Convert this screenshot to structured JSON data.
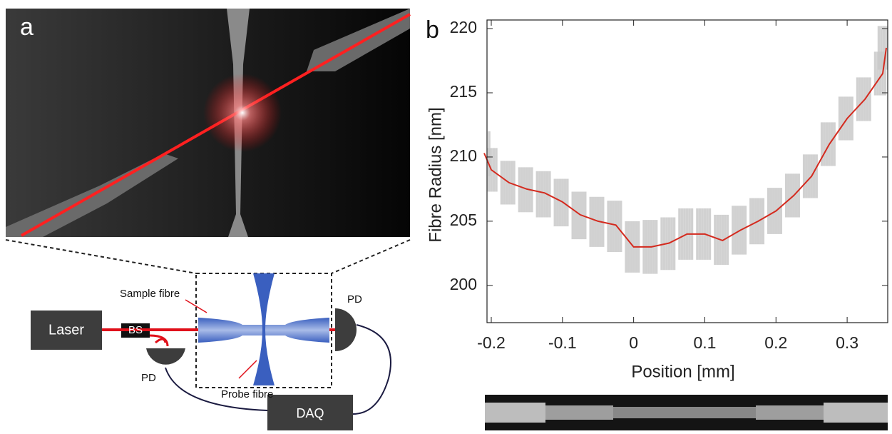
{
  "chart_data": {
    "type": "line",
    "xlabel": "Position [mm]",
    "ylabel": "Fibre Radius [nm]",
    "x": [
      -0.21,
      -0.2,
      -0.175,
      -0.15,
      -0.125,
      -0.1,
      -0.075,
      -0.05,
      -0.025,
      0.0,
      0.025,
      0.05,
      0.075,
      0.1,
      0.125,
      0.15,
      0.175,
      0.2,
      0.225,
      0.25,
      0.275,
      0.3,
      0.325,
      0.35,
      0.355
    ],
    "series": [
      {
        "color": "#d42a1e",
        "values": [
          210.3,
          209.0,
          208.0,
          207.5,
          207.2,
          206.5,
          205.5,
          205.0,
          204.7,
          203.0,
          203.0,
          203.3,
          204.0,
          204.0,
          203.5,
          204.3,
          205.0,
          205.8,
          207.0,
          208.5,
          211.0,
          213.0,
          214.5,
          216.5,
          218.5
        ]
      }
    ],
    "band": {
      "color": "#c9c9c9",
      "lower": [
        208.5,
        207.3,
        206.3,
        205.7,
        205.3,
        204.6,
        203.6,
        203.0,
        202.6,
        201.0,
        200.9,
        201.2,
        202.0,
        202.0,
        201.6,
        202.4,
        203.2,
        204.0,
        205.3,
        206.8,
        209.3,
        211.3,
        212.8,
        214.8,
        216.8
      ],
      "upper": [
        212.0,
        210.7,
        209.7,
        209.2,
        208.9,
        208.3,
        207.3,
        206.9,
        206.6,
        205.0,
        205.1,
        205.3,
        206.0,
        206.0,
        205.5,
        206.2,
        206.8,
        207.6,
        208.7,
        210.2,
        212.7,
        214.7,
        216.2,
        218.2,
        220.2
      ]
    },
    "xlim": [
      -0.206,
      0.357
    ],
    "ylim": [
      197.1,
      220.67
    ],
    "xticks": [
      -0.2,
      -0.1,
      0,
      0.1,
      0.2,
      0.3
    ],
    "yticks": [
      200,
      205,
      210,
      215,
      220
    ]
  },
  "figure": {
    "panel_a": "a",
    "panel_b": "b",
    "laser": "Laser",
    "bs": "BS",
    "pd_top": "PD",
    "pd_bottom": "PD",
    "sample_fibre": "Sample fibre",
    "probe_fibre": "Probe fibre",
    "daq": "DAQ"
  }
}
